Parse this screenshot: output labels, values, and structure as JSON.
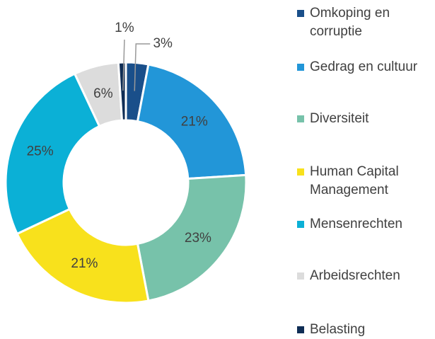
{
  "chart_data": {
    "type": "donut",
    "categories": [
      "Omkoping en corruptie",
      "Gedrag en cultuur",
      "Diversiteit",
      "Human Capital Management",
      "Mensenrechten",
      "Arbeidsrechten",
      "Belasting"
    ],
    "values": [
      3,
      21,
      23,
      21,
      25,
      6,
      1
    ],
    "value_labels": [
      "3%",
      "21%",
      "23%",
      "21%",
      "25%",
      "6%",
      "1%"
    ],
    "colors": [
      "#1a4f8a",
      "#2296d8",
      "#77c2aa",
      "#f8e11c",
      "#0bb0d6",
      "#dcdcdc",
      "#0f2d55"
    ],
    "legend": "right"
  }
}
